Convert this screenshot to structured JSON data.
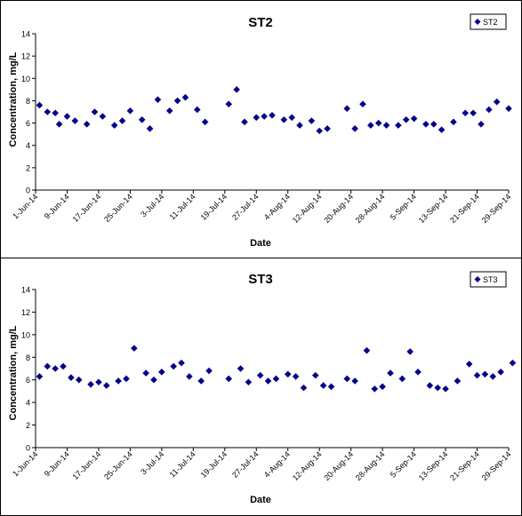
{
  "chart_data": [
    {
      "type": "scatter",
      "title": "ST2",
      "xlabel": "Date",
      "ylabel": "Concentration, mg/L",
      "ylim": [
        0,
        14
      ],
      "yticks": [
        0,
        2,
        4,
        6,
        8,
        10,
        12,
        14
      ],
      "xlim": [
        "2014-06-01",
        "2014-09-29"
      ],
      "xtick_labels": [
        "1-Jun-14",
        "9-Jun-14",
        "17-Jun-14",
        "25-Jun-14",
        "3-Jul-14",
        "11-Jul-14",
        "19-Jul-14",
        "27-Jul-14",
        "4-Aug-14",
        "12-Aug-14",
        "20-Aug-14",
        "28-Aug-14",
        "5-Sep-14",
        "13-Sep-14",
        "21-Sep-14",
        "29-Sep-14"
      ],
      "grid": false,
      "legend_position": "top-right",
      "marker_color": "#00008b",
      "series": [
        {
          "name": "ST2",
          "points": [
            [
              "2014-06-02",
              7.6
            ],
            [
              "2014-06-04",
              7.0
            ],
            [
              "2014-06-06",
              6.9
            ],
            [
              "2014-06-07",
              5.9
            ],
            [
              "2014-06-09",
              6.6
            ],
            [
              "2014-06-11",
              6.2
            ],
            [
              "2014-06-14",
              5.9
            ],
            [
              "2014-06-16",
              7.0
            ],
            [
              "2014-06-18",
              6.6
            ],
            [
              "2014-06-21",
              5.8
            ],
            [
              "2014-06-23",
              6.2
            ],
            [
              "2014-06-25",
              7.1
            ],
            [
              "2014-06-28",
              6.3
            ],
            [
              "2014-06-30",
              5.5
            ],
            [
              "2014-07-02",
              8.1
            ],
            [
              "2014-07-05",
              7.1
            ],
            [
              "2014-07-07",
              8.0
            ],
            [
              "2014-07-09",
              8.3
            ],
            [
              "2014-07-12",
              7.2
            ],
            [
              "2014-07-14",
              6.1
            ],
            [
              "2014-07-20",
              7.7
            ],
            [
              "2014-07-22",
              9.0
            ],
            [
              "2014-07-24",
              6.1
            ],
            [
              "2014-07-27",
              6.5
            ],
            [
              "2014-07-29",
              6.6
            ],
            [
              "2014-07-31",
              6.7
            ],
            [
              "2014-08-03",
              6.3
            ],
            [
              "2014-08-05",
              6.5
            ],
            [
              "2014-08-07",
              5.8
            ],
            [
              "2014-08-10",
              6.2
            ],
            [
              "2014-08-12",
              5.3
            ],
            [
              "2014-08-14",
              5.5
            ],
            [
              "2014-08-19",
              7.3
            ],
            [
              "2014-08-21",
              5.5
            ],
            [
              "2014-08-23",
              7.7
            ],
            [
              "2014-08-25",
              5.8
            ],
            [
              "2014-08-27",
              6.0
            ],
            [
              "2014-08-29",
              5.8
            ],
            [
              "2014-09-01",
              5.8
            ],
            [
              "2014-09-03",
              6.3
            ],
            [
              "2014-09-05",
              6.4
            ],
            [
              "2014-09-08",
              5.9
            ],
            [
              "2014-09-10",
              5.9
            ],
            [
              "2014-09-12",
              5.4
            ],
            [
              "2014-09-15",
              6.1
            ],
            [
              "2014-09-18",
              6.9
            ],
            [
              "2014-09-20",
              6.9
            ],
            [
              "2014-09-22",
              5.9
            ],
            [
              "2014-09-24",
              7.2
            ],
            [
              "2014-09-26",
              7.9
            ],
            [
              "2014-09-29",
              7.3
            ]
          ]
        }
      ]
    },
    {
      "type": "scatter",
      "title": "ST3",
      "xlabel": "Date",
      "ylabel": "Concentration, mg/L",
      "ylim": [
        0,
        14
      ],
      "yticks": [
        0,
        2,
        4,
        6,
        8,
        10,
        12,
        14
      ],
      "xlim": [
        "2014-06-01",
        "2014-09-29"
      ],
      "xtick_labels": [
        "1-Jun-14",
        "9-Jun-14",
        "17-Jun-14",
        "25-Jun-14",
        "3-Jul-14",
        "11-Jul-14",
        "19-Jul-14",
        "27-Jul-14",
        "4-Aug-14",
        "12-Aug-14",
        "20-Aug-14",
        "28-Aug-14",
        "5-Sep-14",
        "13-Sep-14",
        "21-Sep-14",
        "29-Sep-14"
      ],
      "grid": false,
      "legend_position": "top-right",
      "marker_color": "#00008b",
      "series": [
        {
          "name": "ST3",
          "points": [
            [
              "2014-06-02",
              6.3
            ],
            [
              "2014-06-04",
              7.2
            ],
            [
              "2014-06-06",
              7.0
            ],
            [
              "2014-06-08",
              7.2
            ],
            [
              "2014-06-10",
              6.2
            ],
            [
              "2014-06-12",
              6.0
            ],
            [
              "2014-06-15",
              5.6
            ],
            [
              "2014-06-17",
              5.8
            ],
            [
              "2014-06-19",
              5.5
            ],
            [
              "2014-06-22",
              5.9
            ],
            [
              "2014-06-24",
              6.1
            ],
            [
              "2014-06-26",
              8.8
            ],
            [
              "2014-06-29",
              6.6
            ],
            [
              "2014-07-01",
              6.0
            ],
            [
              "2014-07-03",
              6.7
            ],
            [
              "2014-07-06",
              7.2
            ],
            [
              "2014-07-08",
              7.5
            ],
            [
              "2014-07-10",
              6.3
            ],
            [
              "2014-07-13",
              5.9
            ],
            [
              "2014-07-15",
              6.8
            ],
            [
              "2014-07-20",
              6.1
            ],
            [
              "2014-07-23",
              7.0
            ],
            [
              "2014-07-25",
              5.8
            ],
            [
              "2014-07-28",
              6.4
            ],
            [
              "2014-07-30",
              5.9
            ],
            [
              "2014-08-01",
              6.1
            ],
            [
              "2014-08-04",
              6.5
            ],
            [
              "2014-08-06",
              6.3
            ],
            [
              "2014-08-08",
              5.3
            ],
            [
              "2014-08-11",
              6.4
            ],
            [
              "2014-08-13",
              5.5
            ],
            [
              "2014-08-15",
              5.4
            ],
            [
              "2014-08-19",
              6.1
            ],
            [
              "2014-08-21",
              5.9
            ],
            [
              "2014-08-24",
              8.6
            ],
            [
              "2014-08-26",
              5.2
            ],
            [
              "2014-08-28",
              5.4
            ],
            [
              "2014-08-30",
              6.6
            ],
            [
              "2014-09-02",
              6.1
            ],
            [
              "2014-09-04",
              8.5
            ],
            [
              "2014-09-06",
              6.7
            ],
            [
              "2014-09-09",
              5.5
            ],
            [
              "2014-09-11",
              5.3
            ],
            [
              "2014-09-13",
              5.2
            ],
            [
              "2014-09-16",
              5.9
            ],
            [
              "2014-09-19",
              7.4
            ],
            [
              "2014-09-21",
              6.4
            ],
            [
              "2014-09-23",
              6.5
            ],
            [
              "2014-09-25",
              6.3
            ],
            [
              "2014-09-27",
              6.7
            ],
            [
              "2014-09-30",
              7.5
            ]
          ]
        }
      ]
    }
  ]
}
